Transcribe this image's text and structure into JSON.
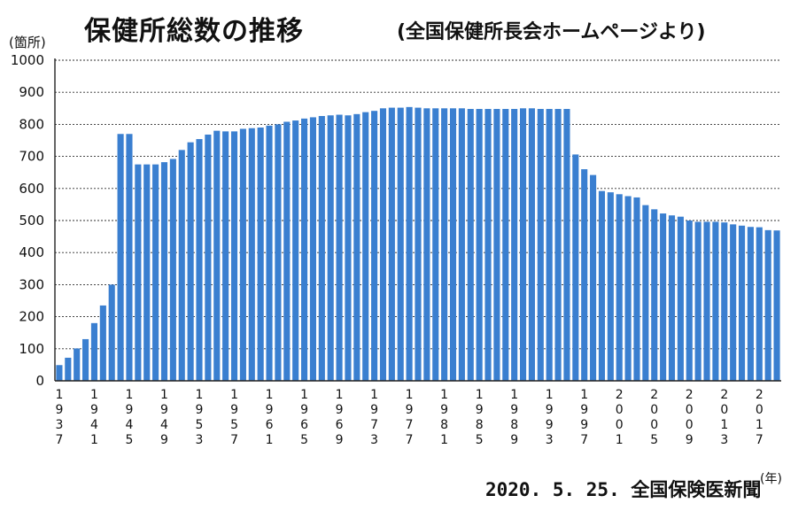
{
  "header": {
    "title": "保健所総数の推移",
    "subtitle": "(全国保健所長会ホームページより)"
  },
  "footer": {
    "source": "2020. 5. 25. 全国保険医新聞"
  },
  "chart_data": {
    "type": "bar",
    "title": "保健所総数の推移",
    "subtitle": "(全国保健所長会ホームページより)",
    "ylabel": "(箇所)",
    "xlabel": "(年)",
    "ylim": [
      0,
      1000
    ],
    "yticks": [
      0,
      100,
      200,
      300,
      400,
      500,
      600,
      700,
      800,
      900,
      1000
    ],
    "grid": true,
    "bar_color": "#3a7fd0",
    "xtick_labels": [
      "1937",
      "1941",
      "1945",
      "1949",
      "1953",
      "1957",
      "1961",
      "1965",
      "1969",
      "1973",
      "1977",
      "1981",
      "1985",
      "1989",
      "1993",
      "1997",
      "2001",
      "2005",
      "2009",
      "2013",
      "2017"
    ],
    "categories": [
      1937,
      1938,
      1939,
      1940,
      1941,
      1942,
      1943,
      1944,
      1945,
      1946,
      1947,
      1948,
      1949,
      1950,
      1951,
      1952,
      1953,
      1954,
      1955,
      1956,
      1957,
      1958,
      1959,
      1960,
      1961,
      1962,
      1963,
      1964,
      1965,
      1966,
      1967,
      1968,
      1969,
      1970,
      1971,
      1972,
      1973,
      1974,
      1975,
      1976,
      1977,
      1978,
      1979,
      1980,
      1981,
      1982,
      1983,
      1984,
      1985,
      1986,
      1987,
      1988,
      1989,
      1990,
      1991,
      1992,
      1993,
      1994,
      1995,
      1996,
      1997,
      1998,
      1999,
      2000,
      2001,
      2002,
      2003,
      2004,
      2005,
      2006,
      2007,
      2008,
      2009,
      2010,
      2011,
      2012,
      2013,
      2014,
      2015,
      2016,
      2017,
      2018,
      2019
    ],
    "values": [
      49,
      72,
      101,
      130,
      180,
      235,
      300,
      770,
      770,
      675,
      675,
      675,
      682,
      692,
      720,
      744,
      754,
      768,
      780,
      778,
      778,
      786,
      788,
      790,
      796,
      800,
      808,
      812,
      818,
      822,
      826,
      828,
      830,
      828,
      832,
      838,
      842,
      850,
      852,
      852,
      854,
      852,
      850,
      850,
      850,
      850,
      850,
      848,
      848,
      848,
      848,
      848,
      848,
      850,
      850,
      848,
      848,
      848,
      848,
      706,
      660,
      642,
      592,
      588,
      582,
      576,
      572,
      548,
      535,
      522,
      516,
      512,
      500,
      496,
      496,
      496,
      494,
      488,
      484,
      480,
      479,
      470,
      469
    ]
  }
}
